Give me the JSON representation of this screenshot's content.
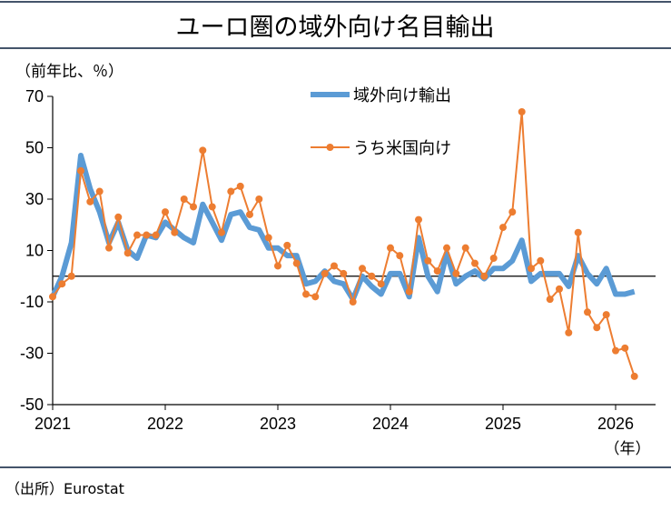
{
  "title": "ユーロ圏の域外向け名目輸出",
  "source": "（出所）Eurostat",
  "colors": {
    "frame": "#44546a",
    "axis": "#000000",
    "extra_eu": "#5b9bd5",
    "us": "#ed7d31"
  },
  "chart_data": {
    "type": "line",
    "title": "ユーロ圏の域外向け名目輸出",
    "ylabel": "（前年比、％）",
    "xlabel": "（年）",
    "ylim": [
      -50,
      70
    ],
    "yticks": [
      70,
      50,
      30,
      10,
      -10,
      -30,
      -50
    ],
    "xlim": [
      2021.0,
      2026.417
    ],
    "xticks": [
      2021,
      2022,
      2023,
      2024,
      2025,
      2026
    ],
    "zero_line": true,
    "grid": false,
    "legend_position": "top-center",
    "series": [
      {
        "name": "域外向け輸出",
        "style": "thick-line",
        "color": "#5b9bd5",
        "x": [
          2021.0,
          2021.083,
          2021.167,
          2021.25,
          2021.333,
          2021.417,
          2021.5,
          2021.583,
          2021.667,
          2021.75,
          2021.833,
          2021.917,
          2022.0,
          2022.083,
          2022.167,
          2022.25,
          2022.333,
          2022.417,
          2022.5,
          2022.583,
          2022.667,
          2022.75,
          2022.833,
          2022.917,
          2023.0,
          2023.083,
          2023.167,
          2023.25,
          2023.333,
          2023.417,
          2023.5,
          2023.583,
          2023.667,
          2023.75,
          2023.833,
          2023.917,
          2024.0,
          2024.083,
          2024.167,
          2024.25,
          2024.333,
          2024.417,
          2024.5,
          2024.583,
          2024.667,
          2024.75,
          2024.833,
          2024.917,
          2025.0,
          2025.083,
          2025.167,
          2025.25,
          2025.333,
          2025.417,
          2025.5,
          2025.583,
          2025.667,
          2025.75,
          2025.833,
          2025.917,
          2026.0,
          2026.083,
          2026.167
        ],
        "values": [
          -8,
          0,
          13,
          47,
          34,
          25,
          13,
          21,
          10,
          7,
          16,
          15,
          21,
          18,
          15,
          13,
          28,
          21,
          14,
          24,
          25,
          19,
          18,
          11,
          11,
          8,
          8,
          -3,
          -2,
          2,
          -2,
          -3,
          -9,
          0,
          -4,
          -7,
          1,
          1,
          -8,
          15,
          0,
          -6,
          9,
          -3,
          0,
          2,
          -1,
          3,
          3,
          6,
          14,
          -2,
          1,
          1,
          1,
          -4,
          8,
          1,
          -3,
          3,
          -7,
          -7,
          -6
        ]
      },
      {
        "name": "うち米国向け",
        "style": "line-markers",
        "color": "#ed7d31",
        "x": [
          2021.0,
          2021.083,
          2021.167,
          2021.25,
          2021.333,
          2021.417,
          2021.5,
          2021.583,
          2021.667,
          2021.75,
          2021.833,
          2021.917,
          2022.0,
          2022.083,
          2022.167,
          2022.25,
          2022.333,
          2022.417,
          2022.5,
          2022.583,
          2022.667,
          2022.75,
          2022.833,
          2022.917,
          2023.0,
          2023.083,
          2023.167,
          2023.25,
          2023.333,
          2023.417,
          2023.5,
          2023.583,
          2023.667,
          2023.75,
          2023.833,
          2023.917,
          2024.0,
          2024.083,
          2024.167,
          2024.25,
          2024.333,
          2024.417,
          2024.5,
          2024.583,
          2024.667,
          2024.75,
          2024.833,
          2024.917,
          2025.0,
          2025.083,
          2025.167,
          2025.25,
          2025.333,
          2025.417,
          2025.5,
          2025.583,
          2025.667,
          2025.75,
          2025.833,
          2025.917,
          2026.0,
          2026.083,
          2026.167
        ],
        "values": [
          -8,
          -3,
          0,
          41,
          29,
          33,
          11,
          23,
          9,
          16,
          16,
          16,
          25,
          17,
          30,
          27,
          49,
          27,
          17,
          33,
          35,
          24,
          30,
          15,
          4,
          12,
          5,
          -7,
          -8,
          1,
          4,
          1,
          -10,
          3,
          0,
          -3,
          11,
          8,
          -6,
          22,
          6,
          2,
          11,
          1,
          11,
          5,
          0,
          7,
          19,
          25,
          64,
          3,
          6,
          -9,
          -5,
          -22,
          17,
          -14,
          -20,
          -15,
          -29,
          -28,
          -39
        ]
      }
    ]
  }
}
